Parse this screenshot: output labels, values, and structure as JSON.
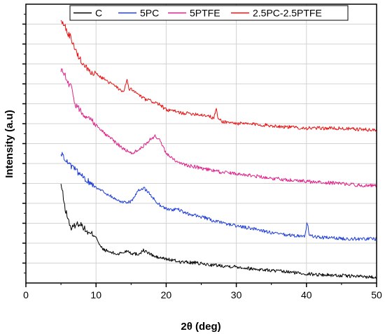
{
  "chart_data": {
    "type": "line",
    "title": "",
    "xlabel": "2θ (deg)",
    "ylabel": "Intensity (a.u)",
    "xlim": [
      0,
      50
    ],
    "ylim": [
      0,
      14.5
    ],
    "x_ticks": [
      "0",
      "10",
      "20",
      "30",
      "40",
      "50"
    ],
    "y_tick_labels": "none",
    "grid": true,
    "legend_position": "top",
    "series": [
      {
        "name": "C",
        "color": "#000000",
        "x": [
          5,
          5.2,
          5.5,
          5.8,
          6.2,
          6.5,
          6.8,
          7.2,
          7.6,
          8,
          8.5,
          9,
          9.5,
          10,
          10.5,
          11,
          12,
          13,
          14,
          14.5,
          15,
          16,
          16.8,
          17.5,
          18.5,
          20,
          22,
          24,
          26,
          28,
          30,
          32,
          35,
          38,
          41,
          44,
          47,
          50
        ],
        "y": [
          5.1,
          4.8,
          4.0,
          3.6,
          3.1,
          2.8,
          2.95,
          3.05,
          3.1,
          3.0,
          2.75,
          2.55,
          2.55,
          2.45,
          1.95,
          1.75,
          1.6,
          1.5,
          1.6,
          1.7,
          1.55,
          1.5,
          1.7,
          1.55,
          1.35,
          1.25,
          1.1,
          1.05,
          0.95,
          0.9,
          0.85,
          0.75,
          0.65,
          0.55,
          0.45,
          0.4,
          0.35,
          0.3
        ]
      },
      {
        "name": "5PC",
        "color": "#1f3fd6",
        "x": [
          5,
          5.5,
          6,
          7,
          8,
          9,
          10,
          11,
          12,
          13,
          14,
          15,
          15.5,
          16.2,
          16.8,
          17.5,
          18.5,
          19.5,
          20.5,
          21.5,
          23,
          25,
          27,
          29,
          31,
          33,
          35,
          37,
          39,
          39.8,
          40.1,
          40.4,
          41,
          43,
          46,
          50
        ],
        "y": [
          6.8,
          6.5,
          6.2,
          5.9,
          5.55,
          5.25,
          5.0,
          4.75,
          4.55,
          4.3,
          4.2,
          4.25,
          4.5,
          4.85,
          4.95,
          4.7,
          4.25,
          3.95,
          3.8,
          3.85,
          3.6,
          3.45,
          3.2,
          3.05,
          2.9,
          2.8,
          2.6,
          2.5,
          2.45,
          2.45,
          3.2,
          2.5,
          2.4,
          2.35,
          2.3,
          2.3
        ]
      },
      {
        "name": "5PTFE",
        "color": "#e0208a",
        "x": [
          5,
          5.5,
          6,
          6.5,
          7,
          8,
          9,
          10,
          11,
          12,
          13,
          14,
          15,
          16,
          17,
          18,
          18.5,
          19,
          20,
          21,
          22,
          24,
          26,
          28,
          30,
          32,
          35,
          38,
          41,
          44,
          47,
          50
        ],
        "y": [
          11.1,
          10.9,
          10.4,
          10.2,
          9.3,
          8.85,
          8.6,
          8.25,
          7.85,
          7.55,
          7.25,
          6.95,
          6.75,
          6.9,
          7.2,
          7.55,
          7.65,
          7.45,
          6.75,
          6.45,
          6.2,
          6.05,
          5.9,
          5.75,
          5.7,
          5.6,
          5.45,
          5.35,
          5.25,
          5.2,
          5.1,
          5.05
        ]
      },
      {
        "name": "2.5PC-2.5PTFE",
        "color": "#e81010",
        "x": [
          5,
          5.5,
          6,
          6.5,
          7,
          7.5,
          8,
          9,
          10,
          11,
          12,
          13,
          14,
          14.4,
          14.8,
          15,
          16,
          17,
          18,
          19,
          20,
          21,
          22,
          24,
          26,
          26.8,
          27.1,
          27.4,
          28,
          30,
          33,
          36,
          40,
          44,
          47,
          50
        ],
        "y": [
          13.75,
          13.4,
          13.0,
          12.7,
          12.2,
          11.75,
          11.5,
          11.05,
          10.85,
          10.65,
          10.4,
          10.15,
          9.95,
          10.55,
          9.95,
          10.1,
          9.8,
          9.55,
          9.45,
          9.3,
          9.0,
          8.95,
          8.85,
          8.8,
          8.7,
          8.55,
          9.1,
          8.55,
          8.4,
          8.3,
          8.25,
          8.15,
          8.05,
          8.05,
          8.0,
          7.95
        ]
      }
    ]
  }
}
